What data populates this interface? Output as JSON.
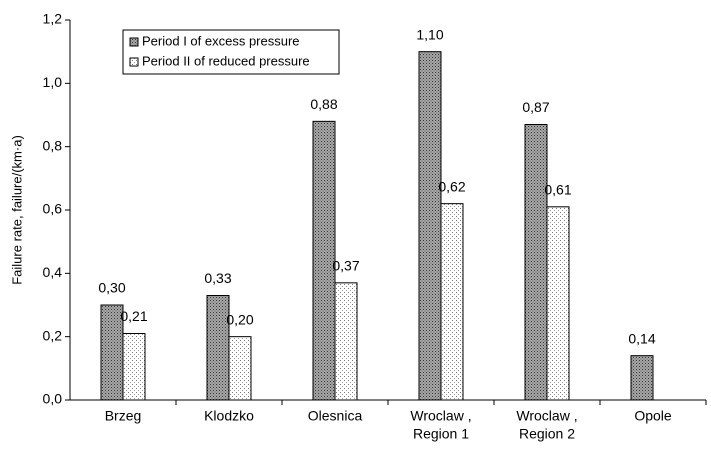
{
  "chart_data": {
    "type": "bar",
    "y_label": "Failure rate, failure/(km·a)",
    "categories": [
      [
        "Brzeg"
      ],
      [
        "Klodzko"
      ],
      [
        "Olesnica"
      ],
      [
        "Wroclaw ,",
        "Region 1"
      ],
      [
        "Wroclaw ,",
        "Region 2"
      ],
      [
        "Opole"
      ]
    ],
    "series": [
      {
        "name": "Period I of excess pressure",
        "color": "#a8a8a8",
        "values": [
          0.3,
          0.33,
          0.88,
          1.1,
          0.87,
          0.14
        ],
        "value_labels": [
          "0,30",
          "0,33",
          "0,88",
          "1,10",
          "0,87",
          "0,14"
        ]
      },
      {
        "name": "Period II of reduced pressure",
        "color": "#ffffff",
        "values": [
          0.21,
          0.2,
          0.37,
          0.62,
          0.61,
          null
        ],
        "value_labels": [
          "0,21",
          "0,20",
          "0,37",
          "0,62",
          "0,61",
          null
        ]
      }
    ],
    "ylim": [
      0,
      1.2
    ],
    "yticks": [
      {
        "value": 0,
        "label": "0,0"
      },
      {
        "value": 0.2,
        "label": "0,2"
      },
      {
        "value": 0.4,
        "label": "0,4"
      },
      {
        "value": 0.6,
        "label": "0,6"
      },
      {
        "value": 0.8,
        "label": "0,8"
      },
      {
        "value": 1.0,
        "label": "1,0"
      },
      {
        "value": 1.2,
        "label": "1,2"
      }
    ],
    "legend": "upper-left"
  }
}
